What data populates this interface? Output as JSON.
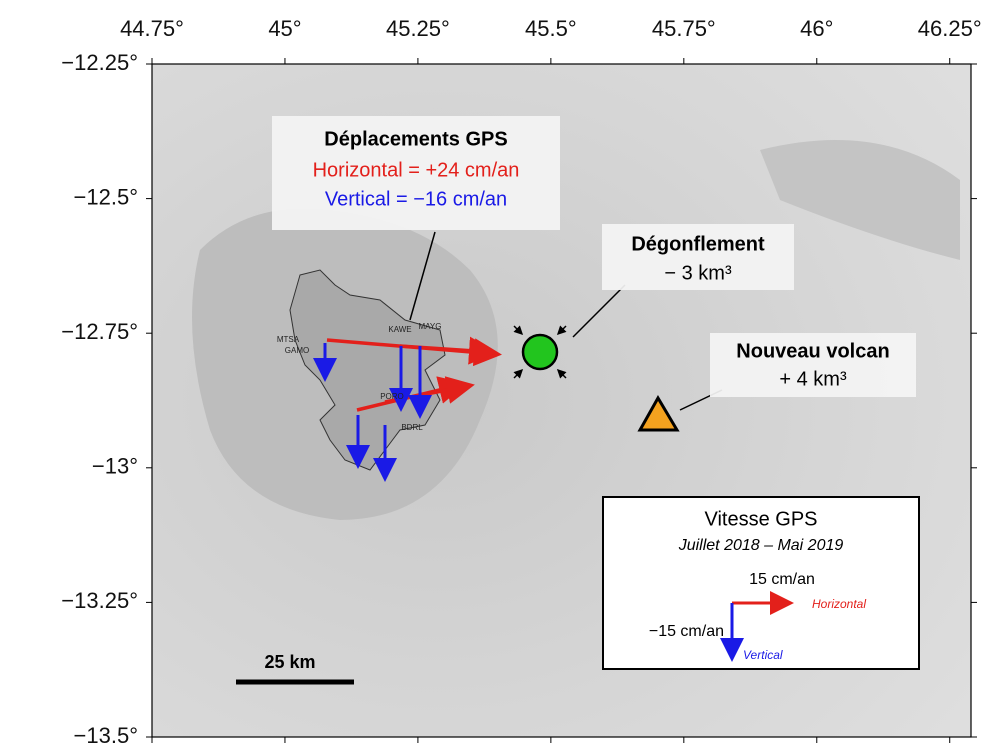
{
  "map": {
    "lon_lim": [
      44.75,
      46.29
    ],
    "lat_lim": [
      -13.5,
      -12.25
    ],
    "lon_ticks": [
      {
        "value": 44.75,
        "label": "44.75°"
      },
      {
        "value": 45,
        "label": "45°"
      },
      {
        "value": 45.25,
        "label": "45.25°"
      },
      {
        "value": 45.5,
        "label": "45.5°"
      },
      {
        "value": 45.75,
        "label": "45.75°"
      },
      {
        "value": 46,
        "label": "46°"
      },
      {
        "value": 46.25,
        "label": "46.25°"
      }
    ],
    "lat_ticks": [
      {
        "value": -12.25,
        "label": "−12.25°"
      },
      {
        "value": -12.5,
        "label": "−12.5°"
      },
      {
        "value": -12.75,
        "label": "−12.75°"
      },
      {
        "value": -13,
        "label": "−13°"
      },
      {
        "value": -13.25,
        "label": "−13.25°"
      },
      {
        "value": -13.5,
        "label": "−13.5°"
      }
    ],
    "gps_box": {
      "title": "Déplacements GPS",
      "horizontal": "Horizontal =  +24 cm/an",
      "vertical": "Vertical = −16 cm/an"
    },
    "deflation": {
      "title": "Dégonflement",
      "volume": "− 3 km³"
    },
    "new_volcano": {
      "title": "Nouveau volcan",
      "volume": "+ 4 km³"
    },
    "stations": [
      "MTSA",
      "GAMO",
      "KAWE",
      "MAYG",
      "PORO",
      "BDRL"
    ],
    "legend": {
      "title": "Vitesse GPS",
      "period": "Juillet 2018 – Mai 2019",
      "h_scale": "15 cm/an",
      "h_label": "Horizontal",
      "v_scale": "−15 cm/an",
      "v_label": "Vertical"
    },
    "scale_bar": "25 km"
  }
}
